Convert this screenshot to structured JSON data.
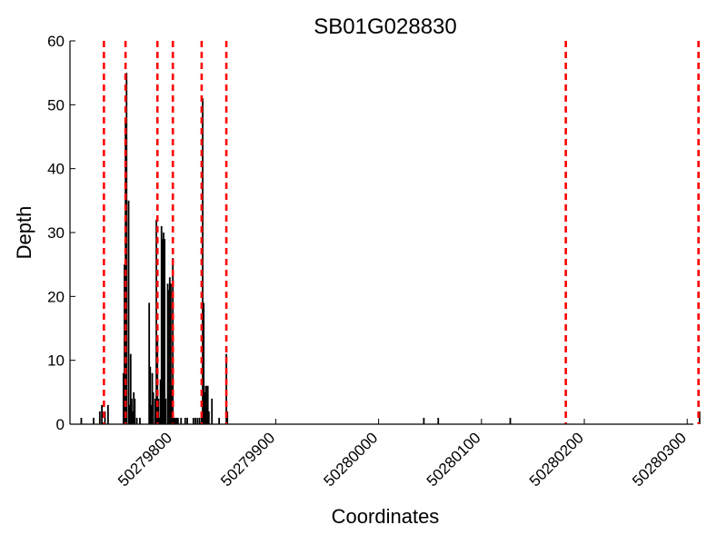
{
  "chart_data": {
    "type": "bar",
    "title": "SB01G028830",
    "xlabel": "Coordinates",
    "ylabel": "Depth",
    "xlim": [
      50279700,
      50280306
    ],
    "ylim": [
      0,
      60
    ],
    "y_ticks": [
      0,
      10,
      20,
      30,
      40,
      50,
      60
    ],
    "x_ticks": [
      50279800,
      50279900,
      50280000,
      50280100,
      50280200,
      50280300
    ],
    "grid": false,
    "bar_color": "#000000",
    "boundary_color": "#ff0000",
    "boundaries": [
      50279733,
      50279754,
      50279785,
      50279800,
      50279828,
      50279852,
      50280182,
      50280311
    ],
    "series": [
      {
        "x": [
          50279711,
          50279723,
          50279729,
          50279731,
          50279734,
          50279737,
          50279752,
          50279753,
          50279754,
          50279755,
          50279757,
          50279758,
          50279759,
          50279760,
          50279761,
          50279762,
          50279763,
          50279765,
          50279768,
          50279777,
          50279778,
          50279779,
          50279780,
          50279781,
          50279783,
          50279784,
          50279785,
          50279786,
          50279787,
          50279788,
          50279789,
          50279790,
          50279791,
          50279792,
          50279793,
          50279795,
          50279796,
          50279797,
          50279798,
          50279799,
          50279800,
          50279801,
          50279802,
          50279803,
          50279804,
          50279805,
          50279808,
          50279812,
          50279814,
          50279820,
          50279822,
          50279824,
          50279826,
          50279828,
          50279829,
          50279830,
          50279831,
          50279832,
          50279833,
          50279834,
          50279835,
          50279838,
          50279845,
          50279852,
          50279853,
          50280044,
          50280058,
          50280128,
          50280312
        ],
        "y": [
          1,
          1,
          2,
          3,
          2,
          3,
          8,
          25,
          48,
          55,
          35,
          3,
          11,
          4,
          2,
          5,
          4,
          1,
          1,
          19,
          9,
          3,
          8,
          5,
          4,
          32,
          13,
          4,
          1,
          7,
          31,
          29,
          30,
          29,
          4,
          22,
          21,
          23,
          22,
          6,
          26,
          1,
          1,
          1,
          1,
          1,
          1,
          1,
          1,
          1,
          1,
          1,
          1,
          1,
          51,
          19,
          5,
          6,
          6,
          6,
          2,
          4,
          1,
          11,
          2,
          1,
          1,
          1,
          2
        ]
      }
    ]
  }
}
